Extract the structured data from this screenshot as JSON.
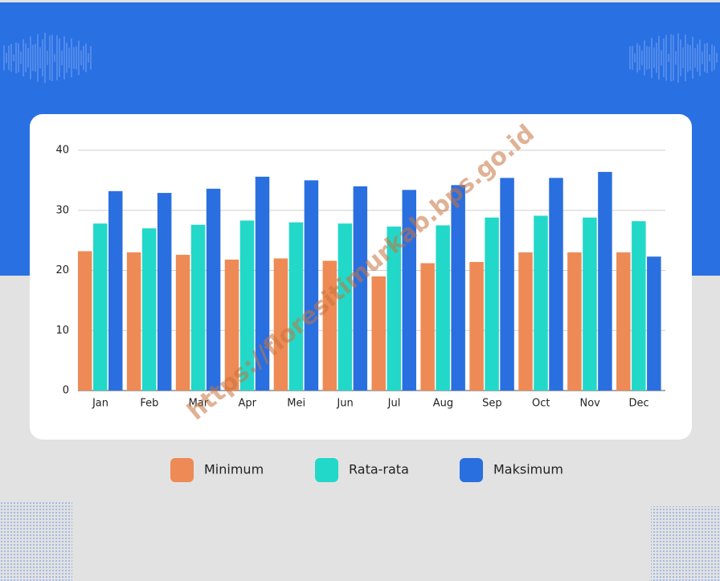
{
  "chart_data": {
    "type": "bar",
    "categories": [
      "Jan",
      "Feb",
      "Mar",
      "Apr",
      "Mei",
      "Jun",
      "Jul",
      "Aug",
      "Sep",
      "Oct",
      "Nov",
      "Dec"
    ],
    "series": [
      {
        "name": "Minimum",
        "color": "#ee8a55",
        "values": [
          23.2,
          23.0,
          22.6,
          21.8,
          22.0,
          21.6,
          19.0,
          21.2,
          21.4,
          23.0,
          23.0,
          23.0
        ]
      },
      {
        "name": "Rata-rata",
        "color": "#22d8c8",
        "values": [
          27.8,
          27.0,
          27.6,
          28.3,
          28.0,
          27.8,
          27.3,
          27.5,
          28.8,
          29.1,
          28.8,
          28.2
        ]
      },
      {
        "name": "Maksimum",
        "color": "#2a6fe0",
        "values": [
          33.2,
          32.9,
          33.6,
          35.6,
          35.0,
          34.0,
          33.4,
          34.2,
          35.4,
          35.4,
          36.4,
          22.3
        ]
      }
    ],
    "ylim": [
      0,
      40
    ],
    "yticks": [
      0,
      10,
      20,
      30,
      40
    ],
    "grid": true,
    "watermark": "https://floresitimurkab.bps.go.id"
  }
}
